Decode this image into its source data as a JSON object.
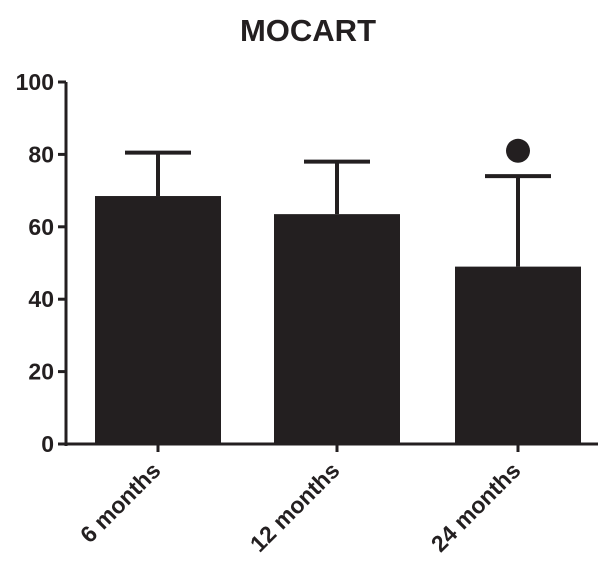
{
  "chart_data": {
    "type": "bar",
    "title": "MOCART",
    "xlabel": "",
    "ylabel": "",
    "categories": [
      "6 months",
      "12 months",
      "24 months"
    ],
    "values": [
      68.5,
      63.5,
      49
    ],
    "error_upper": [
      80.5,
      78,
      74
    ],
    "ylim": [
      0,
      100
    ],
    "yticks": [
      0,
      20,
      40,
      60,
      80,
      100
    ],
    "markers": [
      {
        "category": "24 months",
        "value": 81,
        "shape": "filled-circle"
      }
    ],
    "grid": false,
    "bar_color": "#231f20",
    "axis_color": "#231f20"
  }
}
